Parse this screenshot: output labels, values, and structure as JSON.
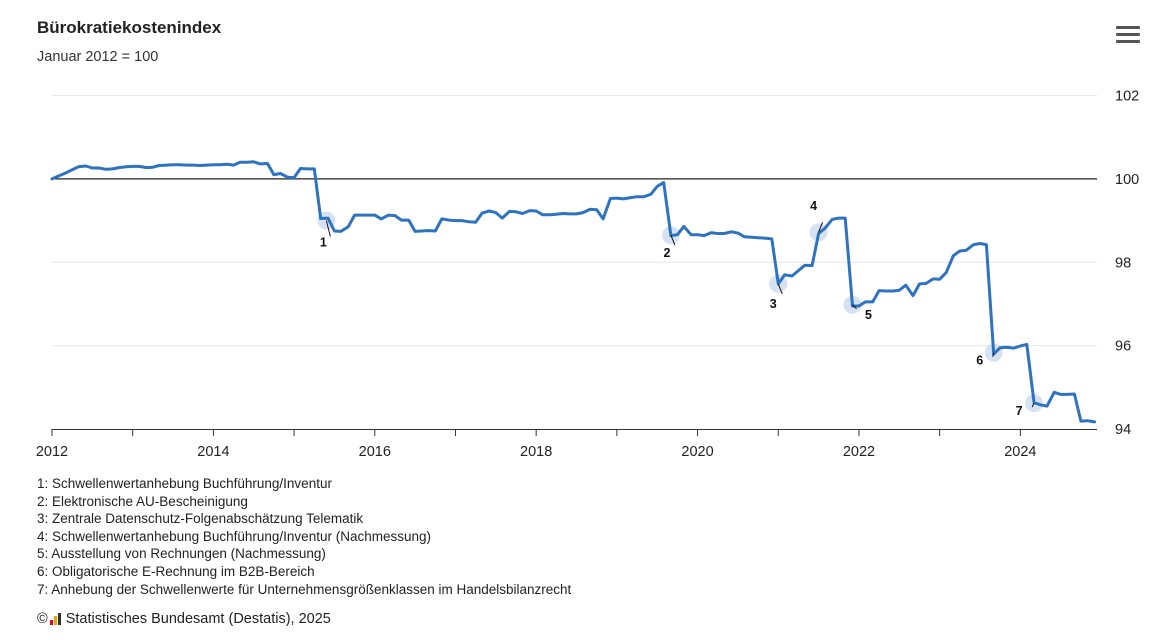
{
  "header": {
    "title": "Bürokratiekostenindex",
    "subtitle": "Januar 2012 = 100",
    "menu_icon": "hamburger-menu-icon"
  },
  "colors": {
    "line": "#2e73c0",
    "marker": "#c8d8ee",
    "baseline": "#222222",
    "grid": "#e6e6e6"
  },
  "chart_data": {
    "type": "line",
    "title": "Bürokratiekostenindex",
    "subtitle": "Januar 2012 = 100",
    "xlim": [
      2012,
      2024.95
    ],
    "ylim": [
      94,
      102.5
    ],
    "x_ticks": [
      2012,
      2014,
      2016,
      2018,
      2020,
      2022,
      2024
    ],
    "y_ticks": [
      94,
      96,
      98,
      100,
      102
    ],
    "reference_line": 100,
    "grid": true,
    "y_axis_position": "right",
    "series": [
      {
        "x": [
          2012.0,
          2012.08,
          2012.17,
          2012.25,
          2012.33,
          2012.42,
          2012.5,
          2012.58,
          2012.67,
          2012.75,
          2012.83,
          2012.92,
          2013.0,
          2013.08,
          2013.17,
          2013.25,
          2013.33,
          2013.42,
          2013.5,
          2013.58,
          2013.67,
          2013.75,
          2013.83,
          2013.92,
          2014.0,
          2014.08,
          2014.17,
          2014.25,
          2014.33,
          2014.42,
          2014.5,
          2014.58,
          2014.67,
          2014.75,
          2014.83,
          2014.92,
          2015.0,
          2015.08,
          2015.17,
          2015.25,
          2015.33,
          2015.42,
          2015.5,
          2015.58,
          2015.67,
          2015.75,
          2015.83,
          2015.92,
          2016.0,
          2016.08,
          2016.17,
          2016.25,
          2016.33,
          2016.42,
          2016.5,
          2016.58,
          2016.67,
          2016.75,
          2016.83,
          2016.92,
          2017.0,
          2017.08,
          2017.17,
          2017.25,
          2017.33,
          2017.42,
          2017.5,
          2017.58,
          2017.67,
          2017.75,
          2017.83,
          2017.92,
          2018.0,
          2018.08,
          2018.17,
          2018.25,
          2018.33,
          2018.42,
          2018.5,
          2018.58,
          2018.67,
          2018.75,
          2018.83,
          2018.92,
          2019.0,
          2019.08,
          2019.17,
          2019.25,
          2019.33,
          2019.42,
          2019.5,
          2019.58,
          2019.67,
          2019.75,
          2019.83,
          2019.92,
          2020.0,
          2020.08,
          2020.17,
          2020.25,
          2020.33,
          2020.42,
          2020.5,
          2020.58,
          2020.67,
          2020.75,
          2020.83,
          2020.92,
          2021.0,
          2021.08,
          2021.17,
          2021.25,
          2021.33,
          2021.42,
          2021.5,
          2021.58,
          2021.67,
          2021.75,
          2021.83,
          2021.92,
          2022.0,
          2022.08,
          2022.17,
          2022.25,
          2022.33,
          2022.42,
          2022.5,
          2022.58,
          2022.67,
          2022.75,
          2022.83,
          2022.92,
          2023.0,
          2023.08,
          2023.17,
          2023.25,
          2023.33,
          2023.42,
          2023.5,
          2023.58,
          2023.67,
          2023.75,
          2023.83,
          2023.92,
          2024.0,
          2024.08,
          2024.17,
          2024.25,
          2024.33,
          2024.42,
          2024.5,
          2024.58,
          2024.67,
          2024.75,
          2024.83,
          2024.92
        ],
        "y": [
          100.0,
          100.07,
          100.14,
          100.22,
          100.29,
          100.31,
          100.26,
          100.26,
          100.23,
          100.24,
          100.27,
          100.29,
          100.3,
          100.3,
          100.27,
          100.28,
          100.32,
          100.33,
          100.34,
          100.34,
          100.33,
          100.33,
          100.32,
          100.33,
          100.34,
          100.34,
          100.35,
          100.33,
          100.4,
          100.4,
          100.41,
          100.36,
          100.37,
          100.1,
          100.13,
          100.04,
          100.03,
          100.25,
          100.24,
          100.24,
          99.05,
          99.06,
          98.75,
          98.74,
          98.85,
          99.13,
          99.13,
          99.13,
          99.13,
          99.04,
          99.13,
          99.12,
          99.01,
          99.01,
          98.74,
          98.75,
          98.76,
          98.75,
          99.04,
          99.01,
          99.0,
          99.0,
          98.97,
          98.96,
          99.18,
          99.23,
          99.19,
          99.06,
          99.22,
          99.21,
          99.17,
          99.24,
          99.23,
          99.14,
          99.14,
          99.15,
          99.17,
          99.16,
          99.16,
          99.19,
          99.27,
          99.26,
          99.04,
          99.53,
          99.54,
          99.52,
          99.55,
          99.57,
          99.57,
          99.63,
          99.82,
          99.91,
          98.64,
          98.66,
          98.86,
          98.66,
          98.66,
          98.64,
          98.71,
          98.69,
          98.69,
          98.73,
          98.7,
          98.61,
          98.6,
          98.59,
          98.58,
          98.56,
          97.48,
          97.7,
          97.67,
          97.8,
          97.93,
          97.92,
          98.69,
          98.82,
          99.03,
          99.06,
          99.06,
          96.95,
          96.95,
          97.05,
          97.05,
          97.32,
          97.31,
          97.31,
          97.33,
          97.45,
          97.2,
          97.48,
          97.49,
          97.6,
          97.59,
          97.75,
          98.16,
          98.27,
          98.29,
          98.42,
          98.45,
          98.42,
          95.8,
          95.95,
          95.96,
          95.94,
          95.99,
          96.03,
          94.63,
          94.58,
          94.55,
          94.88,
          94.83,
          94.83,
          94.84,
          94.19,
          94.2,
          94.17
        ]
      }
    ],
    "annotations": [
      {
        "label": "1",
        "x": 2015.4,
        "y": 99.0
      },
      {
        "label": "2",
        "x": 2019.67,
        "y": 98.65
      },
      {
        "label": "3",
        "x": 2021.0,
        "y": 97.48
      },
      {
        "label": "4",
        "x": 2021.5,
        "y": 98.72
      },
      {
        "label": "5",
        "x": 2021.92,
        "y": 96.98
      },
      {
        "label": "6",
        "x": 2023.67,
        "y": 95.83
      },
      {
        "label": "7",
        "x": 2024.17,
        "y": 94.62
      }
    ]
  },
  "notes": [
    "1: Schwellenwertanhebung Buchführung/Inventur",
    "2: Elektronische AU-Bescheinigung",
    "3: Zentrale Datenschutz-Folgenabschätzung Telematik",
    "4: Schwellenwertanhebung Buchführung/Inventur (Nachmessung)",
    "5: Ausstellung von Rechnungen (Nachmessung)",
    "6: Obligatorische E-Rechnung im B2B-Bereich",
    "7: Anhebung der Schwellenwerte für Unternehmensgrößenklassen im Handelsbilanzrecht"
  ],
  "footer": {
    "copyright_symbol": "©",
    "source_text": "Statistisches Bundesamt (Destatis), 2025",
    "logo": "destatis-logo-icon"
  }
}
